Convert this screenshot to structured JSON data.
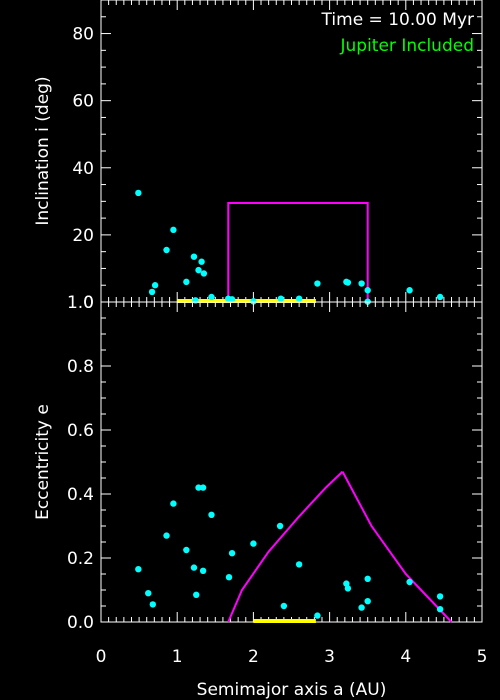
{
  "colors": {
    "background": "#000000",
    "axes": "#ffffff",
    "points": "#00ffff",
    "region": "#ff00ff",
    "bar": "#ffff00",
    "annotation_time": "#ffffff",
    "annotation_jupiter": "#00ff00"
  },
  "chart_data": [
    {
      "type": "scatter",
      "panel": "top",
      "ylabel": "Inclination i (deg)",
      "xlim": [
        0,
        5
      ],
      "ylim": [
        0,
        90
      ],
      "x_ticks": [
        0,
        1,
        2,
        3,
        4,
        5
      ],
      "y_ticks": [
        0,
        20,
        40,
        60,
        80
      ],
      "y_tick_labels": [
        "0",
        "20",
        "40",
        "60",
        "80"
      ],
      "annotations": [
        {
          "text": "Time =  10.00 Myr",
          "color": "#ffffff",
          "position": "top-right"
        },
        {
          "text": "Jupiter Included",
          "color": "#00ff00",
          "position": "top-right"
        }
      ],
      "points": [
        [
          0.49,
          32.5
        ],
        [
          0.67,
          3.0
        ],
        [
          0.71,
          5.0
        ],
        [
          0.86,
          15.5
        ],
        [
          0.95,
          21.5
        ],
        [
          1.12,
          6.0
        ],
        [
          1.22,
          13.5
        ],
        [
          1.24,
          0.5
        ],
        [
          1.28,
          9.5
        ],
        [
          1.32,
          12.0
        ],
        [
          1.35,
          8.5
        ],
        [
          1.45,
          1.5
        ],
        [
          1.67,
          1.0
        ],
        [
          1.72,
          0.8
        ],
        [
          2.0,
          0.2
        ],
        [
          2.36,
          1.0
        ],
        [
          2.6,
          1.0
        ],
        [
          2.84,
          5.5
        ],
        [
          3.22,
          6.0
        ],
        [
          3.24,
          5.8
        ],
        [
          3.42,
          5.5
        ],
        [
          3.5,
          3.5
        ],
        [
          3.5,
          0.1
        ],
        [
          4.05,
          3.5
        ],
        [
          4.45,
          1.5
        ]
      ],
      "region_lines": [
        {
          "points": [
            [
              1.67,
              0
            ],
            [
              1.67,
              29.5
            ],
            [
              3.5,
              29.5
            ],
            [
              3.5,
              0
            ]
          ]
        }
      ],
      "bar_range": {
        "x": [
          1.0,
          2.82
        ],
        "y": 0
      }
    },
    {
      "type": "scatter",
      "panel": "bottom",
      "xlabel": "Semimajor axis a (AU)",
      "ylabel": "Eccentricity e",
      "xlim": [
        0,
        5
      ],
      "ylim": [
        0,
        1.0
      ],
      "x_ticks": [
        0,
        1,
        2,
        3,
        4,
        5
      ],
      "x_tick_labels": [
        "0",
        "1",
        "2",
        "3",
        "4",
        "5"
      ],
      "y_ticks": [
        0.0,
        0.2,
        0.4,
        0.6,
        0.8,
        1.0
      ],
      "y_tick_labels": [
        "0.0",
        "0.2",
        "0.4",
        "0.6",
        "0.8",
        "1.0"
      ],
      "points": [
        [
          0.49,
          0.165
        ],
        [
          0.62,
          0.09
        ],
        [
          0.68,
          0.055
        ],
        [
          0.86,
          0.27
        ],
        [
          0.95,
          0.37
        ],
        [
          1.12,
          0.225
        ],
        [
          1.22,
          0.17
        ],
        [
          1.25,
          0.085
        ],
        [
          1.28,
          0.42
        ],
        [
          1.34,
          0.42
        ],
        [
          1.34,
          0.16
        ],
        [
          1.45,
          0.335
        ],
        [
          1.68,
          0.14
        ],
        [
          1.72,
          0.215
        ],
        [
          2.0,
          0.245
        ],
        [
          2.35,
          0.3
        ],
        [
          2.4,
          0.05
        ],
        [
          2.6,
          0.18
        ],
        [
          2.84,
          0.02
        ],
        [
          3.22,
          0.12
        ],
        [
          3.24,
          0.105
        ],
        [
          3.42,
          0.045
        ],
        [
          3.5,
          0.065
        ],
        [
          3.5,
          0.135
        ],
        [
          4.05,
          0.125
        ],
        [
          4.45,
          0.08
        ],
        [
          4.45,
          0.04
        ]
      ],
      "region_lines": [
        {
          "points": [
            [
              1.67,
              0.0
            ],
            [
              1.85,
              0.1
            ],
            [
              2.2,
              0.22
            ],
            [
              2.6,
              0.33
            ],
            [
              2.95,
              0.42
            ],
            [
              3.17,
              0.47
            ]
          ]
        },
        {
          "points": [
            [
              3.17,
              0.47
            ],
            [
              3.55,
              0.3
            ],
            [
              4.0,
              0.15
            ],
            [
              4.6,
              0.0
            ]
          ]
        }
      ],
      "bar_range": {
        "x": [
          2.0,
          2.82
        ],
        "y": 0
      }
    }
  ]
}
